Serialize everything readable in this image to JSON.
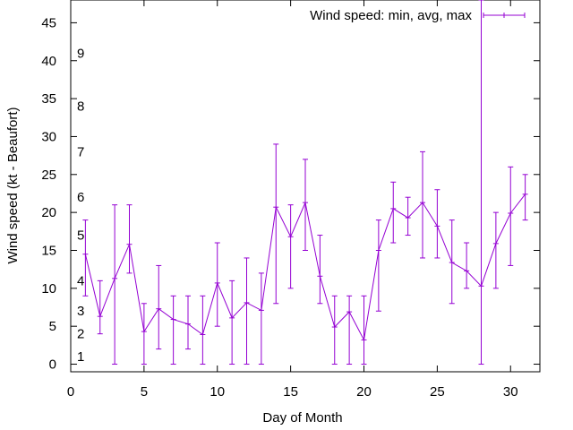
{
  "chart_data": {
    "type": "line-errorbar",
    "title": "",
    "xlabel": "Day of Month",
    "ylabel": "Wind speed (kt - Beaufort)",
    "xlim": [
      0,
      32
    ],
    "ylim": [
      -1,
      48
    ],
    "xticks": [
      0,
      5,
      10,
      15,
      20,
      25,
      30
    ],
    "yticks": [
      0,
      5,
      10,
      15,
      20,
      25,
      30,
      35,
      40,
      45
    ],
    "grid": false,
    "legend_position": "top-right",
    "beaufort_labels": [
      {
        "label": "1",
        "value": 1
      },
      {
        "label": "2",
        "value": 4
      },
      {
        "label": "3",
        "value": 7
      },
      {
        "label": "4",
        "value": 11
      },
      {
        "label": "5",
        "value": 17
      },
      {
        "label": "6",
        "value": 22
      },
      {
        "label": "7",
        "value": 28
      },
      {
        "label": "8",
        "value": 34
      },
      {
        "label": "9",
        "value": 41
      }
    ],
    "series": [
      {
        "name": "Wind speed: min, avg, max",
        "color": "#9400d3",
        "x": [
          1,
          2,
          3,
          4,
          5,
          6,
          7,
          8,
          9,
          10,
          11,
          12,
          13,
          14,
          15,
          16,
          17,
          18,
          19,
          20,
          21,
          22,
          23,
          24,
          25,
          26,
          27,
          28,
          29,
          30,
          31
        ],
        "avg": [
          14.5,
          6.3,
          11.3,
          15.8,
          4.3,
          7.3,
          5.9,
          5.3,
          3.9,
          10.7,
          6.1,
          8.1,
          7.1,
          20.7,
          16.8,
          21.3,
          11.6,
          4.9,
          6.9,
          3.2,
          15.0,
          20.5,
          19.3,
          21.3,
          18.2,
          13.4,
          12.3,
          10.3,
          15.9,
          19.9,
          22.4
        ],
        "min": [
          9,
          4,
          0,
          12,
          0,
          2,
          0,
          2,
          0,
          5,
          0,
          0,
          0,
          8,
          10,
          15,
          8,
          0,
          0,
          0,
          7,
          16,
          17,
          14,
          14,
          8,
          10,
          0,
          10,
          13,
          19
        ],
        "max": [
          19,
          11,
          21,
          21,
          8,
          13,
          9,
          9,
          9,
          16,
          11,
          14,
          12,
          29,
          21,
          27,
          17,
          9,
          9,
          9,
          19,
          24,
          22,
          28,
          23,
          19,
          16,
          48,
          20,
          26,
          25
        ]
      }
    ]
  }
}
